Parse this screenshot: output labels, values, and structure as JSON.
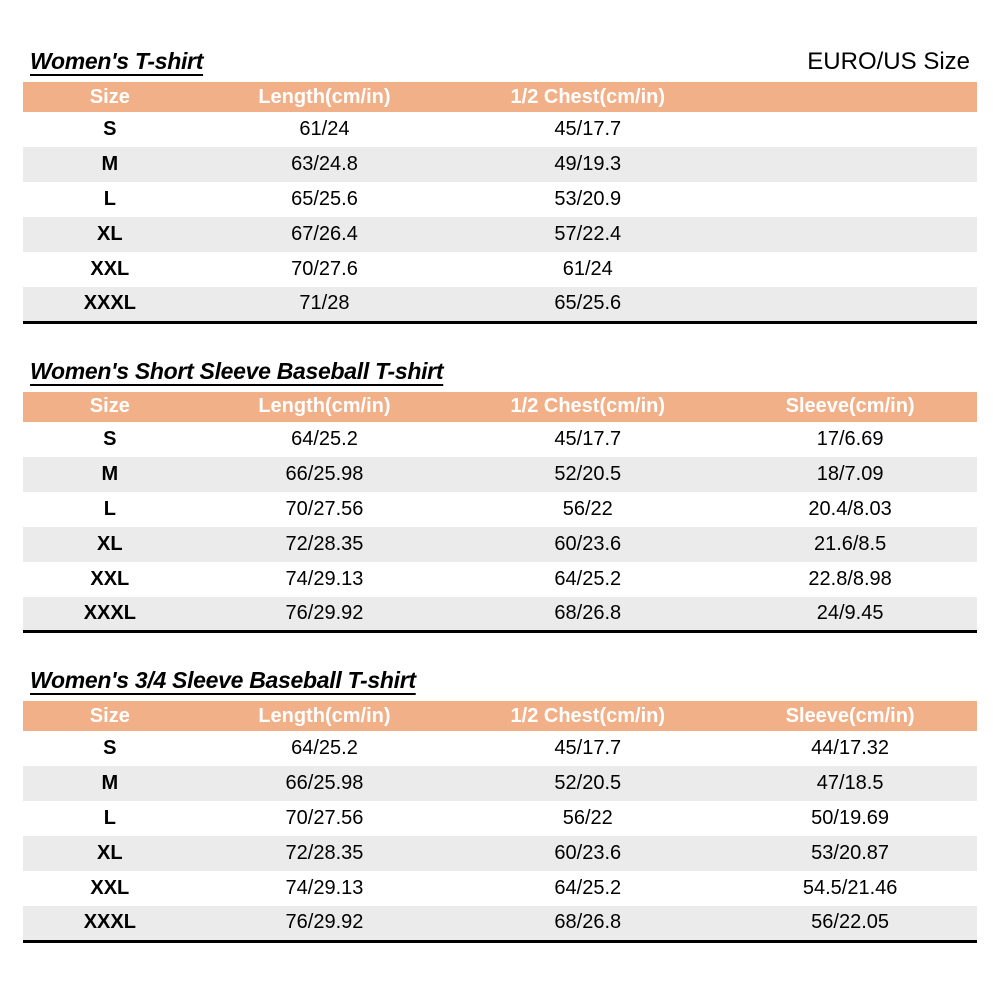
{
  "page": {
    "size_standard_label": "EURO/US Size"
  },
  "colors": {
    "header_bg": "#F2B088",
    "row_alt": "#EBEBEB",
    "header_text": "#FFFFFF"
  },
  "tables": [
    {
      "title": "Women's T-shirt",
      "headers": [
        "Size",
        "Length(cm/in)",
        "1/2 Chest(cm/in)",
        ""
      ],
      "rows": [
        [
          "S",
          "61/24",
          "45/17.7",
          ""
        ],
        [
          "M",
          "63/24.8",
          "49/19.3",
          ""
        ],
        [
          "L",
          "65/25.6",
          "53/20.9",
          ""
        ],
        [
          "XL",
          "67/26.4",
          "57/22.4",
          ""
        ],
        [
          "XXL",
          "70/27.6",
          "61/24",
          ""
        ],
        [
          "XXXL",
          "71/28",
          "65/25.6",
          ""
        ]
      ]
    },
    {
      "title": "Women's Short Sleeve Baseball T-shirt",
      "headers": [
        "Size",
        "Length(cm/in)",
        "1/2 Chest(cm/in)",
        "Sleeve(cm/in)"
      ],
      "rows": [
        [
          "S",
          "64/25.2",
          "45/17.7",
          "17/6.69"
        ],
        [
          "M",
          "66/25.98",
          "52/20.5",
          "18/7.09"
        ],
        [
          "L",
          "70/27.56",
          "56/22",
          "20.4/8.03"
        ],
        [
          "XL",
          "72/28.35",
          "60/23.6",
          "21.6/8.5"
        ],
        [
          "XXL",
          "74/29.13",
          "64/25.2",
          "22.8/8.98"
        ],
        [
          "XXXL",
          "76/29.92",
          "68/26.8",
          "24/9.45"
        ]
      ]
    },
    {
      "title": "Women's 3/4 Sleeve Baseball T-shirt",
      "headers": [
        "Size",
        "Length(cm/in)",
        "1/2 Chest(cm/in)",
        "Sleeve(cm/in)"
      ],
      "rows": [
        [
          "S",
          "64/25.2",
          "45/17.7",
          "44/17.32"
        ],
        [
          "M",
          "66/25.98",
          "52/20.5",
          "47/18.5"
        ],
        [
          "L",
          "70/27.56",
          "56/22",
          "50/19.69"
        ],
        [
          "XL",
          "72/28.35",
          "60/23.6",
          "53/20.87"
        ],
        [
          "XXL",
          "74/29.13",
          "64/25.2",
          "54.5/21.46"
        ],
        [
          "XXXL",
          "76/29.92",
          "68/26.8",
          "56/22.05"
        ]
      ]
    }
  ]
}
